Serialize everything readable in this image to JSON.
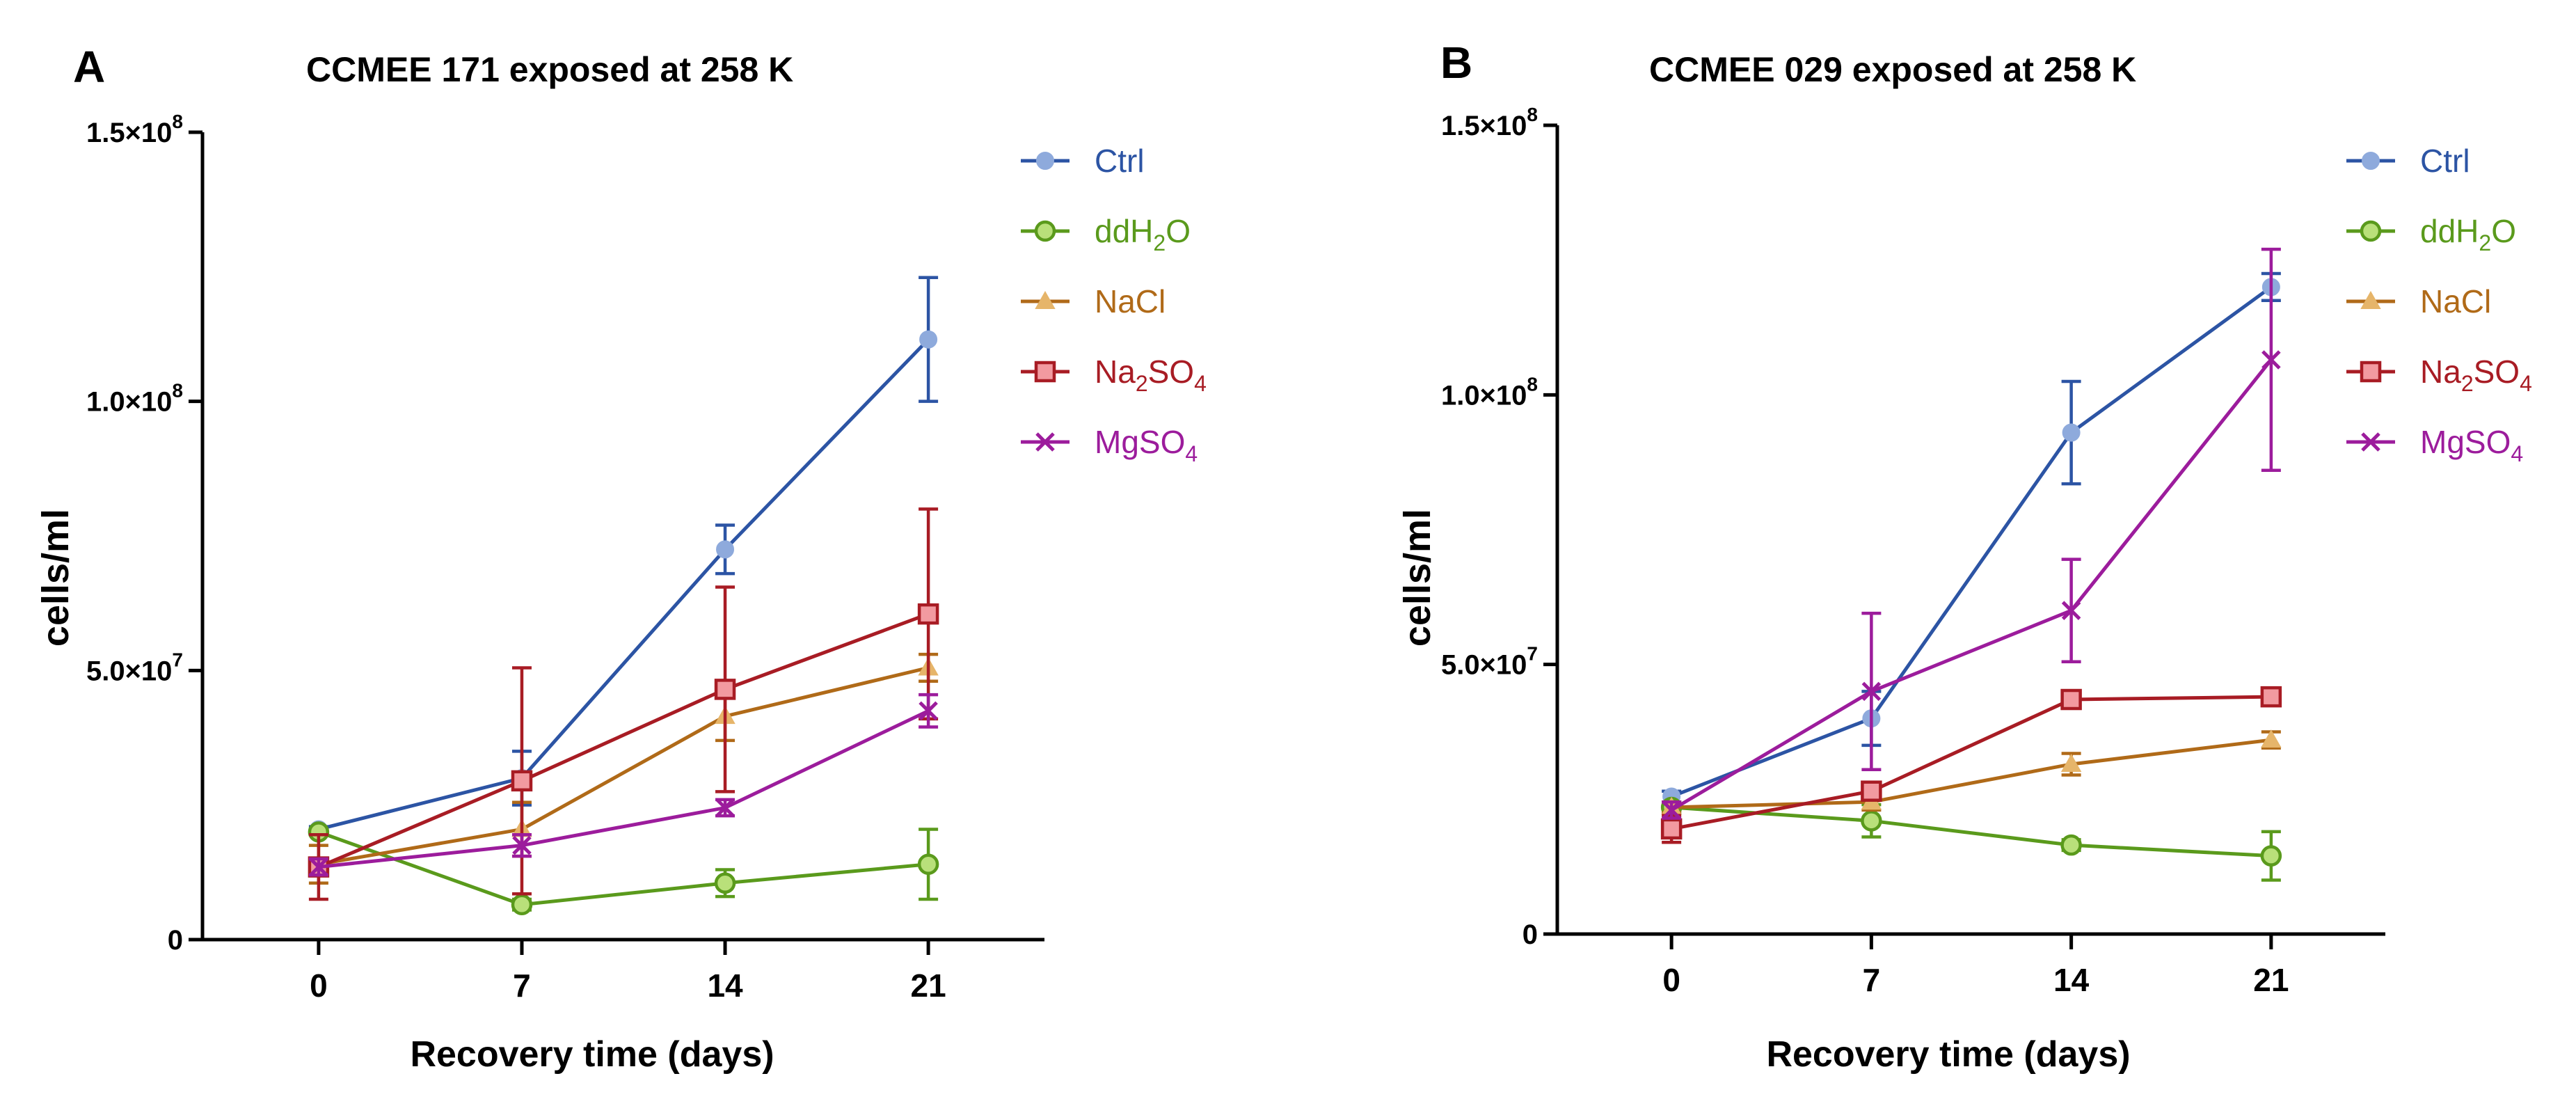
{
  "chart_data": [
    {
      "type": "line",
      "panel": "A",
      "title": "CCMEE 171 exposed at 258 K",
      "xlabel": "Recovery time (days)",
      "ylabel": "cells/ml",
      "x": [
        0,
        7,
        14,
        21
      ],
      "xticks": [
        "0",
        "7",
        "14",
        "21"
      ],
      "xlim": [
        -4,
        25
      ],
      "ylim": [
        0,
        150000000
      ],
      "yticks": [
        {
          "value": 0,
          "mant": "0",
          "exp": ""
        },
        {
          "value": 50000000,
          "mant": "5.0×10",
          "exp": "7"
        },
        {
          "value": 100000000,
          "mant": "1.0×10",
          "exp": "8"
        },
        {
          "value": 150000000,
          "mant": "1.5×10",
          "exp": "8"
        }
      ],
      "grid": false,
      "legend_position": "top-right",
      "series": [
        {
          "name": "Ctrl",
          "label": "Ctrl",
          "sub": "",
          "tail": "",
          "color": "#2c54a4",
          "marker_fill": "#8eaadc",
          "marker": "dot",
          "values": [
            20500000,
            30000000,
            72500000,
            111500000
          ],
          "errors": [
            500000,
            5000000,
            4500000,
            11500000
          ]
        },
        {
          "name": "ddH2O",
          "label": "ddH",
          "sub": "2",
          "tail": "O",
          "color": "#5a9a1c",
          "marker_fill": "#b9e07a",
          "marker": "circle",
          "values": [
            20000000,
            6500000,
            10500000,
            14000000
          ],
          "errors": [
            500000,
            1000000,
            2500000,
            6500000
          ]
        },
        {
          "name": "NaCl",
          "label": "NaCl",
          "sub": "",
          "tail": "",
          "color": "#b06a18",
          "marker_fill": "#e6b56a",
          "marker": "triangle",
          "values": [
            14000000,
            20500000,
            41500000,
            50500000
          ],
          "errors": [
            3500000,
            5000000,
            4500000,
            2500000
          ]
        },
        {
          "name": "Na2SO4",
          "label": "Na",
          "sub": "2",
          "tail": "SO4",
          "color": "#a81c24",
          "marker_fill": "#f29aa0",
          "marker": "square",
          "values": [
            13500000,
            29500000,
            46500000,
            60500000
          ],
          "errors": [
            6000000,
            21000000,
            19000000,
            19500000
          ]
        },
        {
          "name": "MgSO4",
          "label": "MgSO",
          "sub": "4",
          "tail": "",
          "color": "#9c1c9c",
          "marker_fill": "#9c1c9c",
          "marker": "x",
          "values": [
            13500000,
            17500000,
            24500000,
            42500000
          ],
          "errors": [
            1500000,
            2000000,
            1500000,
            3000000
          ]
        }
      ]
    },
    {
      "type": "line",
      "panel": "B",
      "title": "CCMEE 029 exposed at 258 K",
      "xlabel": "Recovery time (days)",
      "ylabel": "cells/ml",
      "x": [
        0,
        7,
        14,
        21
      ],
      "xticks": [
        "0",
        "7",
        "14",
        "21"
      ],
      "xlim": [
        -4,
        25
      ],
      "ylim": [
        0,
        150000000
      ],
      "yticks": [
        {
          "value": 0,
          "mant": "0",
          "exp": ""
        },
        {
          "value": 50000000,
          "mant": "5.0×10",
          "exp": "7"
        },
        {
          "value": 100000000,
          "mant": "1.0×10",
          "exp": "8"
        },
        {
          "value": 150000000,
          "mant": "1.5×10",
          "exp": "8"
        }
      ],
      "grid": false,
      "legend_position": "top-right",
      "series": [
        {
          "name": "Ctrl",
          "label": "Ctrl",
          "sub": "",
          "tail": "",
          "color": "#2c54a4",
          "marker_fill": "#8eaadc",
          "marker": "dot",
          "values": [
            25500000,
            40000000,
            93000000,
            120000000
          ],
          "errors": [
            1000000,
            5000000,
            9500000,
            2500000
          ]
        },
        {
          "name": "ddH2O",
          "label": "ddH",
          "sub": "2",
          "tail": "O",
          "color": "#5a9a1c",
          "marker_fill": "#b9e07a",
          "marker": "circle",
          "values": [
            23500000,
            21000000,
            16500000,
            14500000
          ],
          "errors": [
            1000000,
            3000000,
            1000000,
            4500000
          ]
        },
        {
          "name": "NaCl",
          "label": "NaCl",
          "sub": "",
          "tail": "",
          "color": "#b06a18",
          "marker_fill": "#e6b56a",
          "marker": "triangle",
          "values": [
            23500000,
            24500000,
            31500000,
            36000000
          ],
          "errors": [
            1000000,
            1500000,
            2000000,
            1500000
          ]
        },
        {
          "name": "Na2SO4",
          "label": "Na",
          "sub": "2",
          "tail": "SO4",
          "color": "#a81c24",
          "marker_fill": "#f29aa0",
          "marker": "square",
          "values": [
            19500000,
            26500000,
            43500000,
            44000000
          ],
          "errors": [
            2500000,
            1500000,
            1000000,
            1500000
          ]
        },
        {
          "name": "MgSO4",
          "label": "MgSO",
          "sub": "4",
          "tail": "",
          "color": "#9c1c9c",
          "marker_fill": "#9c1c9c",
          "marker": "x",
          "values": [
            23000000,
            45000000,
            60000000,
            106500000
          ],
          "errors": [
            1500000,
            14500000,
            9500000,
            20500000
          ]
        }
      ]
    }
  ]
}
